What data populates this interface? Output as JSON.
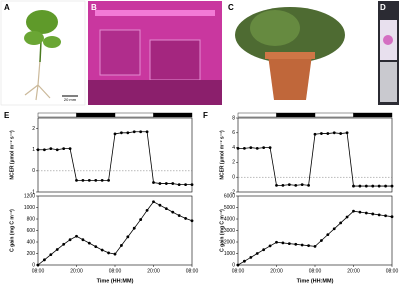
{
  "photos": [
    {
      "letter": "A",
      "scale": "20 mm"
    },
    {
      "letter": "B"
    },
    {
      "letter": "C"
    },
    {
      "letter": "D"
    }
  ],
  "chart_data": [
    {
      "type": "line",
      "panel": "E",
      "ylabel": "NCER (µmol m⁻² s⁻¹)",
      "color": "#000000",
      "zero_line": true,
      "light_bar": true,
      "x": [
        0,
        2,
        4,
        6,
        8,
        10,
        12,
        14,
        16,
        18,
        20,
        22,
        24,
        26,
        28,
        30,
        32,
        34,
        36,
        38,
        40,
        42,
        44,
        46,
        48
      ],
      "values": [
        1.0,
        1.0,
        1.05,
        1.0,
        1.05,
        1.05,
        -0.45,
        -0.45,
        -0.45,
        -0.45,
        -0.45,
        -0.45,
        1.75,
        1.8,
        1.8,
        1.85,
        1.85,
        1.85,
        -0.55,
        -0.6,
        -0.6,
        -0.6,
        -0.65,
        -0.65,
        -0.65
      ],
      "xlim": [
        0,
        48
      ],
      "ylim": [
        -1,
        2.5
      ],
      "yticks": [
        -1,
        0,
        1,
        2
      ]
    },
    {
      "type": "line",
      "ylabel": "C gain (mg C m⁻²)",
      "xlabel": "Time (HH:MM)",
      "color": "#000000",
      "x": [
        0,
        2,
        4,
        6,
        8,
        10,
        12,
        14,
        16,
        18,
        20,
        22,
        24,
        26,
        28,
        30,
        32,
        34,
        36,
        38,
        40,
        42,
        44,
        46,
        48
      ],
      "values": [
        0,
        90,
        180,
        270,
        360,
        440,
        500,
        440,
        380,
        320,
        260,
        210,
        190,
        340,
        490,
        640,
        790,
        950,
        1100,
        1040,
        980,
        920,
        860,
        810,
        770
      ],
      "xlim": [
        0,
        48
      ],
      "xticks": [
        {
          "value": 0,
          "label": "08:00"
        },
        {
          "value": 12,
          "label": "20:00"
        },
        {
          "value": 24,
          "label": "08:00"
        },
        {
          "value": 36,
          "label": "20:00"
        },
        {
          "value": 48,
          "label": "08:00"
        }
      ],
      "ylim": [
        0,
        1200
      ],
      "yticks": [
        0,
        200,
        400,
        600,
        800,
        1000,
        1200
      ]
    },
    {
      "type": "line",
      "panel": "F",
      "ylabel": "NCER (µmol m⁻² s⁻¹)",
      "color": "#000000",
      "zero_line": true,
      "light_bar": true,
      "x": [
        0,
        2,
        4,
        6,
        8,
        10,
        12,
        14,
        16,
        18,
        20,
        22,
        24,
        26,
        28,
        30,
        32,
        34,
        36,
        38,
        40,
        42,
        44,
        46,
        48
      ],
      "values": [
        3.9,
        3.9,
        4.0,
        3.9,
        4.0,
        4.0,
        -1.1,
        -1.1,
        -1.0,
        -1.1,
        -1.0,
        -1.1,
        5.8,
        5.9,
        5.9,
        6.0,
        5.9,
        6.0,
        -1.2,
        -1.2,
        -1.2,
        -1.2,
        -1.2,
        -1.2,
        -1.2
      ],
      "xlim": [
        0,
        48
      ],
      "ylim": [
        -2,
        8
      ],
      "yticks": [
        -2,
        0,
        2,
        4,
        6,
        8
      ]
    },
    {
      "type": "line",
      "ylabel": "C gain (mg C m⁻²)",
      "xlabel": "Time (HH:MM)",
      "color": "#000000",
      "x": [
        0,
        2,
        4,
        6,
        8,
        10,
        12,
        14,
        16,
        18,
        20,
        22,
        24,
        26,
        28,
        30,
        32,
        34,
        36,
        38,
        40,
        42,
        44,
        46,
        48
      ],
      "values": [
        0,
        330,
        660,
        1000,
        1330,
        1660,
        1980,
        1920,
        1860,
        1800,
        1740,
        1680,
        1620,
        2130,
        2640,
        3150,
        3660,
        4170,
        4680,
        4600,
        4520,
        4440,
        4360,
        4280,
        4200
      ],
      "xlim": [
        0,
        48
      ],
      "xticks": [
        {
          "value": 0,
          "label": "08:00"
        },
        {
          "value": 12,
          "label": "20:00"
        },
        {
          "value": 24,
          "label": "08:00"
        },
        {
          "value": 36,
          "label": "20:00"
        },
        {
          "value": 48,
          "label": "08:00"
        }
      ],
      "ylim": [
        0,
        6000
      ],
      "yticks": [
        0,
        1000,
        2000,
        3000,
        4000,
        5000,
        6000
      ]
    }
  ]
}
